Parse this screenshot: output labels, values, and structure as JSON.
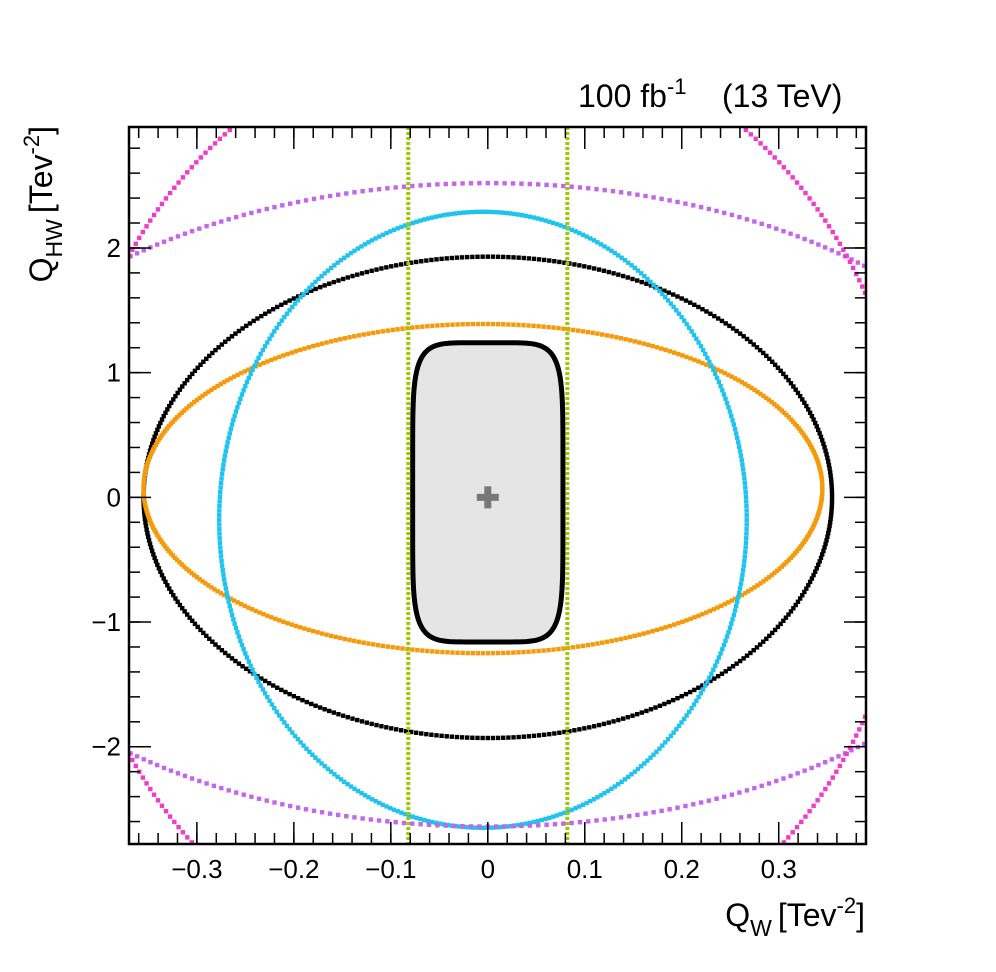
{
  "chart_data": {
    "type": "scatter",
    "title": "",
    "header": {
      "lumi_value": "100 fb",
      "lumi_exponent": "-1",
      "energy": "(13 TeV)"
    },
    "xlabel": {
      "symbol": "Q",
      "subscript": "W",
      "unit": "[Tev",
      "unit_exponent": "-2",
      "unit_close": "]"
    },
    "ylabel": {
      "symbol": "Q",
      "subscript": "HW",
      "unit": "[Tev",
      "unit_exponent": "-2",
      "unit_close": "]"
    },
    "xlim": [
      -0.37,
      0.39
    ],
    "ylim": [
      -2.78,
      2.97
    ],
    "x_ticks": [
      {
        "value": -0.3,
        "label": "−0.3"
      },
      {
        "value": -0.2,
        "label": "−0.2"
      },
      {
        "value": -0.1,
        "label": "−0.1"
      },
      {
        "value": 0,
        "label": "0"
      },
      {
        "value": 0.1,
        "label": "0.1"
      },
      {
        "value": 0.2,
        "label": "0.2"
      },
      {
        "value": 0.3,
        "label": "0.3"
      }
    ],
    "y_ticks": [
      {
        "value": -2,
        "label": "−2"
      },
      {
        "value": -1,
        "label": "−1"
      },
      {
        "value": 0,
        "label": "0"
      },
      {
        "value": 1,
        "label": "1"
      },
      {
        "value": 2,
        "label": "2"
      }
    ],
    "x_minor_step": 0.02,
    "y_minor_step": 0.2,
    "grid": false,
    "best_fit": {
      "x": 0,
      "y": 0,
      "color": "#777777"
    },
    "filled_region": {
      "cx": 0,
      "cy": 0.04,
      "a": 0.0775,
      "b": 1.2,
      "exponent": 6,
      "fill": "#e5e5e5",
      "stroke": "#000000"
    },
    "contours": [
      {
        "shape": "ellipse",
        "cx": 0.0,
        "cy": 0.0,
        "a": 0.355,
        "b": 1.93,
        "color": "#000000"
      },
      {
        "shape": "ellipse",
        "cx": -0.005,
        "cy": 0.07,
        "a": 0.35,
        "b": 1.32,
        "color": "#f59a0a"
      },
      {
        "shape": "ellipse",
        "cx": -0.005,
        "cy": -0.18,
        "a": 0.272,
        "b": 2.47,
        "color": "#1ec4ee"
      },
      {
        "shape": "ellipse",
        "cx": 0.0,
        "cy": -0.06,
        "a": 0.58,
        "b": 2.58,
        "color": "#c466ec"
      },
      {
        "shape": "ellipse",
        "cx": 0.0,
        "cy": -0.06,
        "a": 0.435,
        "b": 3.8,
        "color": "#f03cc8"
      },
      {
        "shape": "vline",
        "x": -0.082,
        "color": "#99cc00"
      },
      {
        "shape": "vline",
        "x": 0.082,
        "color": "#99cc00"
      }
    ]
  }
}
